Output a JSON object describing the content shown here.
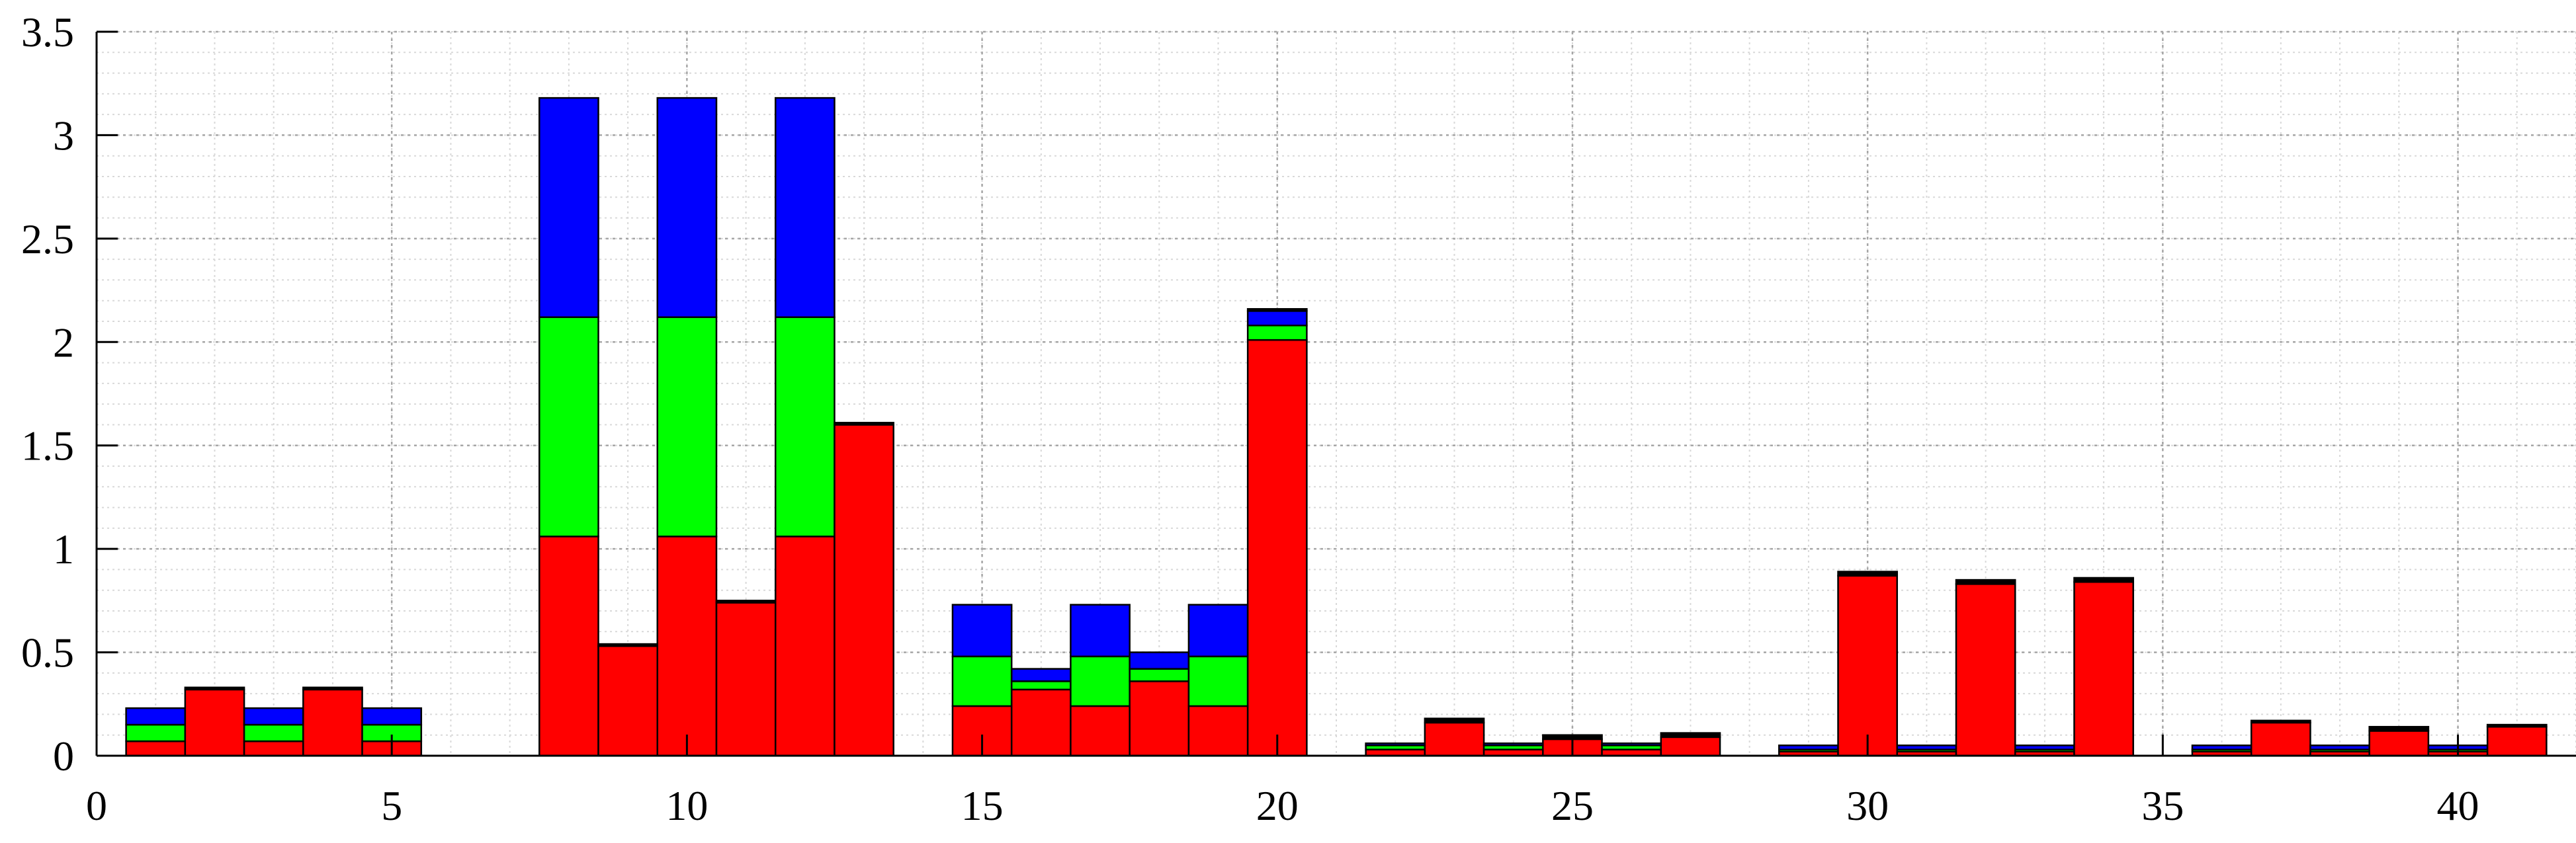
{
  "chart_data": {
    "type": "bar",
    "stacked": true,
    "x": [
      1,
      2,
      3,
      4,
      5,
      6,
      8,
      9,
      10,
      11,
      12,
      13,
      15,
      16,
      17,
      18,
      19,
      20,
      22,
      23,
      24,
      25,
      26,
      27,
      29,
      30,
      31,
      32,
      33,
      34,
      36,
      37,
      38,
      39,
      40,
      41
    ],
    "series": [
      {
        "color": "#ff0000",
        "values": [
          0.07,
          0.32,
          0.07,
          0.32,
          0.07,
          0.0,
          1.06,
          0.53,
          1.06,
          0.74,
          1.06,
          1.6,
          0.24,
          0.32,
          0.24,
          0.36,
          0.24,
          2.01,
          0.03,
          0.16,
          0.03,
          0.08,
          0.03,
          0.09,
          0.02,
          0.87,
          0.02,
          0.83,
          0.02,
          0.84,
          0.02,
          0.16,
          0.02,
          0.12,
          0.02,
          0.14
        ]
      },
      {
        "color": "#00ff00",
        "values": [
          0.08,
          0.0,
          0.08,
          0.0,
          0.08,
          0.0,
          1.06,
          0.0,
          1.06,
          0.0,
          1.06,
          0.0,
          0.24,
          0.04,
          0.24,
          0.06,
          0.24,
          0.07,
          0.02,
          0.0,
          0.02,
          0.0,
          0.02,
          0.0,
          0.01,
          0.0,
          0.01,
          0.0,
          0.01,
          0.0,
          0.01,
          0.0,
          0.01,
          0.0,
          0.01,
          0.0
        ]
      },
      {
        "color": "#0000ff",
        "values": [
          0.08,
          0.0,
          0.08,
          0.0,
          0.08,
          0.0,
          1.06,
          0.0,
          1.06,
          0.0,
          1.06,
          0.0,
          0.25,
          0.06,
          0.25,
          0.08,
          0.25,
          0.07,
          0.01,
          0.0,
          0.01,
          0.0,
          0.01,
          0.0,
          0.02,
          0.0,
          0.02,
          0.0,
          0.02,
          0.0,
          0.02,
          0.0,
          0.02,
          0.0,
          0.02,
          0.0
        ]
      },
      {
        "color": "#000000",
        "values": [
          0.0,
          0.01,
          0.0,
          0.01,
          0.0,
          0.0,
          0.0,
          0.01,
          0.0,
          0.01,
          0.0,
          0.01,
          0.0,
          0.0,
          0.0,
          0.0,
          0.0,
          0.01,
          0.0,
          0.02,
          0.0,
          0.02,
          0.0,
          0.02,
          0.0,
          0.02,
          0.0,
          0.02,
          0.0,
          0.02,
          0.0,
          0.01,
          0.0,
          0.02,
          0.0,
          0.01
        ]
      }
    ],
    "xlim": [
      0,
      42
    ],
    "ylim": [
      0,
      3.5
    ],
    "xticks": [
      0,
      5,
      10,
      15,
      20,
      25,
      30,
      35,
      40
    ],
    "yticks": [
      0,
      0.5,
      1,
      1.5,
      2,
      2.5,
      3,
      3.5
    ],
    "xtick_labels": [
      "0",
      "5",
      "10",
      "15",
      "20",
      "25",
      "30",
      "35",
      "40"
    ],
    "ytick_labels": [
      "0",
      "0.5",
      "1",
      "1.5",
      "2",
      "2.5",
      "3",
      "3.5"
    ],
    "grid": true,
    "minor_grid": true,
    "bar_edge_color": "#000000",
    "title": "",
    "xlabel": "",
    "ylabel": ""
  }
}
